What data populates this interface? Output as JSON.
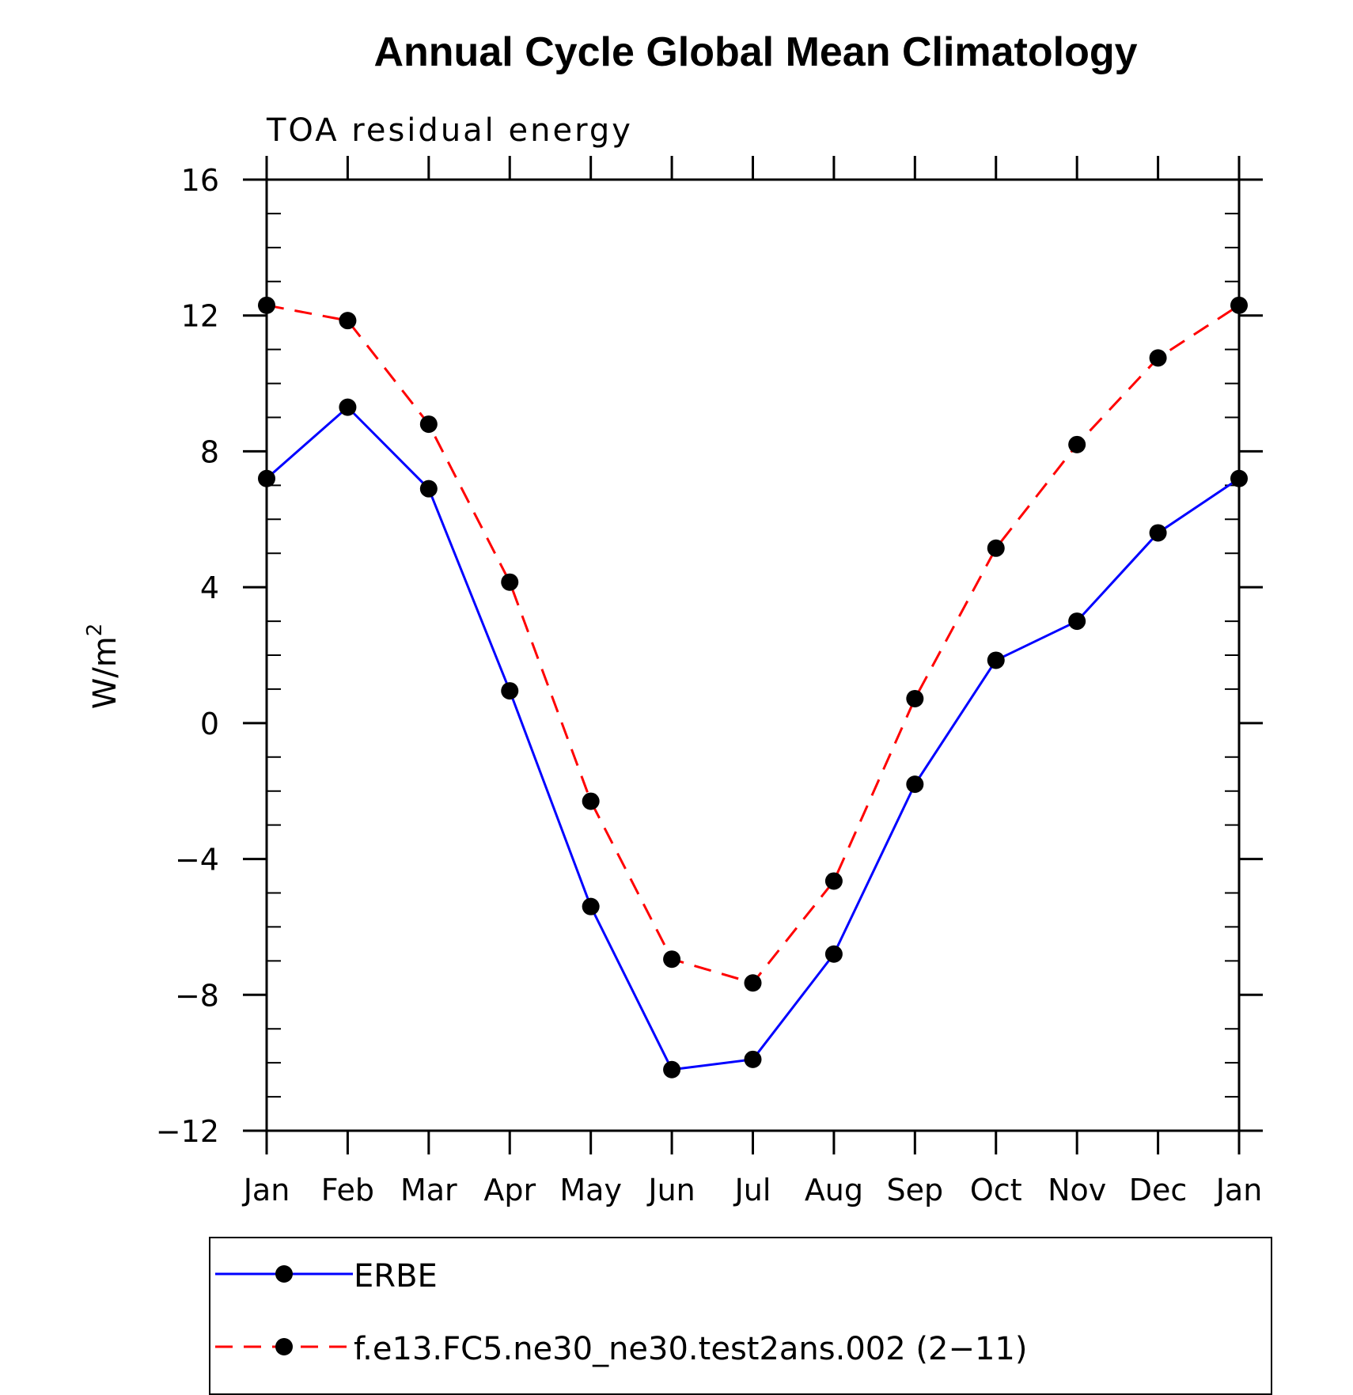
{
  "chart_data": {
    "type": "line",
    "title": "Annual Cycle Global Mean Climatology",
    "subtitle": "TOA residual energy",
    "ylabel_main": "W/m",
    "ylabel_sup": "2",
    "categories": [
      "Jan",
      "Feb",
      "Mar",
      "Apr",
      "May",
      "Jun",
      "Jul",
      "Aug",
      "Sep",
      "Oct",
      "Nov",
      "Dec",
      "Jan"
    ],
    "ylim": [
      -12,
      16
    ],
    "yticks": [
      -12,
      -8,
      -4,
      0,
      4,
      8,
      12,
      16
    ],
    "ytick_labels": [
      "−12",
      "−8",
      "−4",
      "0",
      "4",
      "8",
      "12",
      "16"
    ],
    "series": [
      {
        "name": "ERBE",
        "color": "#0000ff",
        "dash": "solid",
        "values": [
          7.2,
          9.3,
          6.9,
          0.95,
          -5.4,
          -10.2,
          -9.9,
          -6.8,
          -1.8,
          1.85,
          3.0,
          5.6,
          7.2
        ]
      },
      {
        "name": "f.e13.FC5.ne30_ne30.test2ans.002 (2−11)",
        "color": "#ff0000",
        "dash": "dashed",
        "values": [
          12.3,
          11.85,
          8.8,
          4.15,
          -2.3,
          -6.95,
          -7.65,
          -4.65,
          0.72,
          5.15,
          8.2,
          10.75,
          12.3
        ]
      }
    ],
    "marker_color": "#000000",
    "legend_position": "bottom",
    "grid": false
  }
}
